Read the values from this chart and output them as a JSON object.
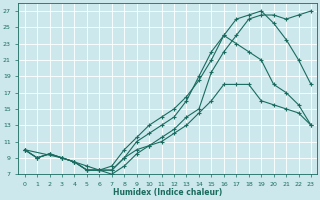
{
  "xlabel": "Humidex (Indice chaleur)",
  "background_color": "#cce8ec",
  "grid_color": "#ffffff",
  "line_color": "#1a6b60",
  "xlim": [
    -0.5,
    23.5
  ],
  "ylim": [
    7,
    28
  ],
  "xticks": [
    0,
    1,
    2,
    3,
    4,
    5,
    6,
    7,
    8,
    9,
    10,
    11,
    12,
    13,
    14,
    15,
    16,
    17,
    18,
    19,
    20,
    21,
    22,
    23
  ],
  "yticks": [
    7,
    9,
    11,
    13,
    15,
    17,
    19,
    21,
    23,
    25,
    27
  ],
  "line1_x": [
    0,
    1,
    2,
    3,
    4,
    5,
    6,
    7,
    8,
    9,
    10,
    11,
    12,
    13,
    14,
    15,
    16,
    17,
    18,
    19,
    20,
    21,
    22,
    23
  ],
  "line1_y": [
    10,
    9,
    9.5,
    9,
    8.5,
    7.5,
    7.5,
    7.5,
    9,
    10,
    10.5,
    11,
    12,
    13,
    14.5,
    16,
    18,
    18,
    18,
    16,
    15.5,
    15,
    14.5,
    13
  ],
  "line2_x": [
    0,
    1,
    2,
    3,
    4,
    5,
    6,
    7,
    8,
    9,
    10,
    11,
    12,
    13,
    14,
    15,
    16,
    17,
    18,
    19,
    20,
    21,
    22,
    23
  ],
  "line2_y": [
    10,
    9,
    9.5,
    9,
    8.5,
    7.5,
    7.5,
    7.5,
    9,
    11,
    12,
    13,
    14,
    16,
    19,
    22,
    24,
    23,
    22,
    21,
    18,
    17,
    15.5,
    13
  ],
  "line3_x": [
    0,
    3,
    4,
    5,
    6,
    7,
    8,
    9,
    10,
    11,
    12,
    13,
    14,
    15,
    16,
    17,
    18,
    19,
    20,
    21,
    22,
    23
  ],
  "line3_y": [
    10,
    9,
    8.5,
    8,
    7.5,
    7,
    8,
    9.5,
    10.5,
    11.5,
    12.5,
    14,
    15,
    19.5,
    22,
    24,
    26,
    26.5,
    26.5,
    26,
    26.5,
    27
  ],
  "line4_x": [
    0,
    1,
    2,
    3,
    4,
    5,
    6,
    7,
    8,
    9,
    10,
    11,
    12,
    13,
    14,
    15,
    16,
    17,
    18,
    19,
    20,
    21,
    22,
    23
  ],
  "line4_y": [
    10,
    9,
    9.5,
    9,
    8.5,
    7.5,
    7.5,
    8,
    10,
    11.5,
    13,
    14,
    15,
    16.5,
    18.5,
    21,
    24,
    26,
    26.5,
    27,
    25.5,
    23.5,
    21,
    18
  ]
}
